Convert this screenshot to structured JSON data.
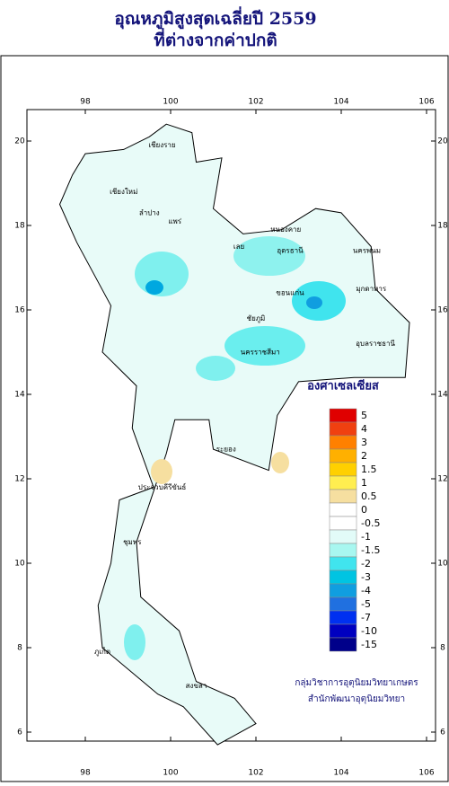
{
  "header": {
    "title": "อุณหภูมิสูงสุดเฉลี่ยปี  2559",
    "subtitle": "ที่ต่างจากค่าปกติ"
  },
  "axes": {
    "lon_ticks": [
      98,
      100,
      102,
      104,
      106
    ],
    "lat_ticks": [
      20,
      18,
      16,
      14,
      12,
      10,
      8,
      6
    ]
  },
  "legend": {
    "unit": "องศาเซลเซียส",
    "levels": [
      {
        "value": 5,
        "color": "#e00000"
      },
      {
        "value": 4,
        "color": "#f04010"
      },
      {
        "value": 3,
        "color": "#ff8000"
      },
      {
        "value": 2,
        "color": "#ffb000"
      },
      {
        "value": 1.5,
        "color": "#ffd000"
      },
      {
        "value": 1,
        "color": "#ffee50"
      },
      {
        "value": 0.5,
        "color": "#f6dfa0"
      },
      {
        "value": 0,
        "color": "#ffffff"
      },
      {
        "value": -0.5,
        "color": "#ffffff"
      },
      {
        "value": -1,
        "color": "#e2fbf8"
      },
      {
        "value": -1.5,
        "color": "#a8f7f0"
      },
      {
        "value": -2,
        "color": "#40e4ee"
      },
      {
        "value": -3,
        "color": "#00c4e2"
      },
      {
        "value": -4,
        "color": "#109ee0"
      },
      {
        "value": -5,
        "color": "#2070e0"
      },
      {
        "value": -7,
        "color": "#0030f0"
      },
      {
        "value": -10,
        "color": "#0000c0"
      },
      {
        "value": -15,
        "color": "#00008a"
      }
    ]
  },
  "places": [
    "เชียงราย",
    "เชียงใหม่",
    "ลำปาง",
    "แพร่",
    "เลย",
    "หนองคาย",
    "อุดรธานี",
    "นครพนม",
    "ขอนแก่น",
    "มุกดาหาร",
    "ชัยภูมิ",
    "นครราชสีมา",
    "อุบลราชธานี",
    "ระยอง",
    "ประจวบคีรีขันธ์",
    "ชุมพร",
    "ภูเก็ต",
    "สงขลา"
  ],
  "credit": [
    "กลุ่มวิชาการอุตุนิยมวิทยาเกษตร",
    "สำนักพัฒนาอุตุนิยมวิทยา"
  ]
}
